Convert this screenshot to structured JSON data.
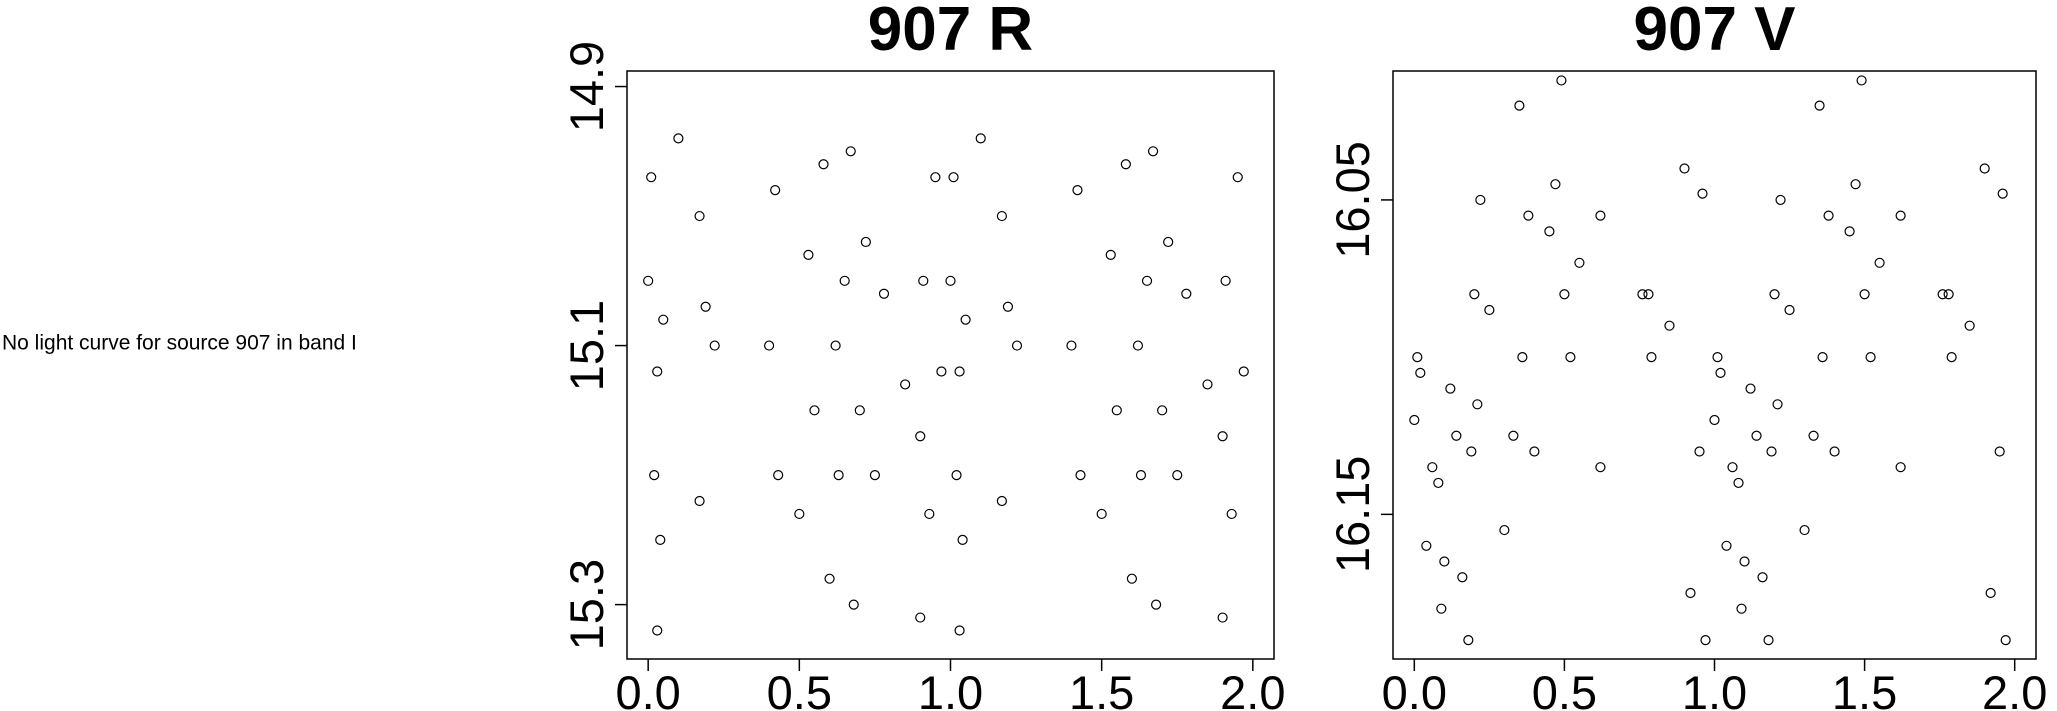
{
  "message": "No light curve for source 907 in band I",
  "chart_data": [
    {
      "type": "scatter",
      "title": "907 R",
      "color": "#000000",
      "xlim": [
        -0.07,
        2.07
      ],
      "ylim": [
        15.342,
        14.888
      ],
      "xticks": [
        {
          "value": 0,
          "label": "0.0"
        },
        0.5,
        {
          "value": 1,
          "label": "1.0"
        },
        1.5,
        {
          "value": 2,
          "label": "2.0"
        }
      ],
      "yticks": [
        14.9,
        15.1,
        15.3
      ],
      "x": [
        0.0,
        0.01,
        0.02,
        0.03,
        0.04,
        0.05,
        0.03,
        0.1,
        0.17,
        0.17,
        0.19,
        0.22,
        0.4,
        0.42,
        0.43,
        0.5,
        0.53,
        0.55,
        0.58,
        0.6,
        0.62,
        0.63,
        0.65,
        0.67,
        0.68,
        0.7,
        0.72,
        0.75,
        0.78,
        0.85,
        0.9,
        0.9,
        0.91,
        0.93,
        0.95,
        0.97,
        1.0,
        1.01,
        1.02,
        1.03,
        1.04,
        1.05,
        1.03,
        1.1,
        1.17,
        1.17,
        1.19,
        1.22,
        1.4,
        1.42,
        1.43,
        1.5,
        1.53,
        1.55,
        1.58,
        1.6,
        1.62,
        1.63,
        1.65,
        1.67,
        1.68,
        1.7,
        1.72,
        1.75,
        1.78,
        1.85,
        1.9,
        1.9,
        1.91,
        1.93,
        1.95,
        1.97
      ],
      "y": [
        15.05,
        14.97,
        15.2,
        15.12,
        15.25,
        15.08,
        15.32,
        14.94,
        15.22,
        15.0,
        15.07,
        15.1,
        15.1,
        14.98,
        15.2,
        15.23,
        15.03,
        15.15,
        14.96,
        15.28,
        15.1,
        15.2,
        15.05,
        14.95,
        15.3,
        15.15,
        15.02,
        15.2,
        15.06,
        15.13,
        15.31,
        15.17,
        15.05,
        15.23,
        14.97,
        15.12,
        15.05,
        14.97,
        15.2,
        15.12,
        15.25,
        15.08,
        15.32,
        14.94,
        15.22,
        15.0,
        15.07,
        15.1,
        15.1,
        14.98,
        15.2,
        15.23,
        15.03,
        15.15,
        14.96,
        15.28,
        15.1,
        15.2,
        15.05,
        14.95,
        15.3,
        15.15,
        15.02,
        15.2,
        15.06,
        15.13,
        15.31,
        15.17,
        15.05,
        15.23,
        14.97,
        15.12
      ]
    },
    {
      "type": "scatter",
      "title": "907 V",
      "color": "#000000",
      "xlim": [
        -0.071,
        2.071
      ],
      "ylim": [
        16.196,
        16.009
      ],
      "xticks": [
        {
          "value": 0,
          "label": "0.0"
        },
        0.5,
        {
          "value": 1,
          "label": "1.0"
        },
        1.5,
        {
          "value": 2,
          "label": "2.0"
        }
      ],
      "yticks": [
        16.05,
        16.15
      ],
      "x": [
        0.0,
        0.01,
        0.02,
        0.04,
        0.06,
        0.08,
        0.09,
        0.1,
        0.12,
        0.14,
        0.16,
        0.18,
        0.19,
        0.2,
        0.21,
        0.22,
        0.25,
        0.3,
        0.33,
        0.35,
        0.36,
        0.38,
        0.4,
        0.45,
        0.47,
        0.49,
        0.5,
        0.52,
        0.55,
        0.62,
        0.62,
        0.76,
        0.78,
        0.79,
        0.85,
        0.9,
        0.92,
        0.95,
        0.96,
        0.97,
        1.0,
        1.01,
        1.02,
        1.04,
        1.06,
        1.08,
        1.09,
        1.1,
        1.12,
        1.14,
        1.16,
        1.18,
        1.19,
        1.2,
        1.21,
        1.22,
        1.25,
        1.3,
        1.33,
        1.35,
        1.36,
        1.38,
        1.4,
        1.45,
        1.47,
        1.49,
        1.5,
        1.52,
        1.55,
        1.62,
        1.62,
        1.76,
        1.78,
        1.79,
        1.85,
        1.9,
        1.92,
        1.95,
        1.96,
        1.97
      ],
      "y": [
        16.12,
        16.1,
        16.105,
        16.16,
        16.135,
        16.14,
        16.18,
        16.165,
        16.11,
        16.125,
        16.17,
        16.19,
        16.13,
        16.08,
        16.115,
        16.05,
        16.085,
        16.155,
        16.125,
        16.02,
        16.1,
        16.055,
        16.13,
        16.06,
        16.045,
        16.012,
        16.08,
        16.1,
        16.07,
        16.055,
        16.135,
        16.08,
        16.08,
        16.1,
        16.09,
        16.04,
        16.175,
        16.13,
        16.048,
        16.19,
        16.12,
        16.1,
        16.105,
        16.16,
        16.135,
        16.14,
        16.18,
        16.165,
        16.11,
        16.125,
        16.17,
        16.19,
        16.13,
        16.08,
        16.115,
        16.05,
        16.085,
        16.155,
        16.125,
        16.02,
        16.1,
        16.055,
        16.13,
        16.06,
        16.045,
        16.012,
        16.08,
        16.1,
        16.07,
        16.055,
        16.135,
        16.08,
        16.08,
        16.1,
        16.09,
        16.04,
        16.175,
        16.13,
        16.048,
        16.19
      ]
    }
  ]
}
